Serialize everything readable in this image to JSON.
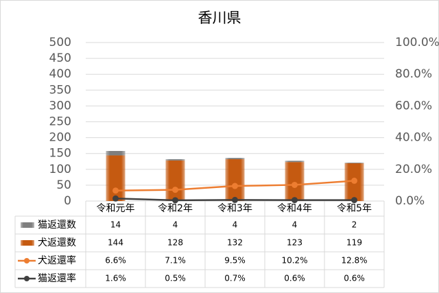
{
  "chart_data": {
    "type": "bar",
    "title": "香川県",
    "categories": [
      "令和元年",
      "令和2年",
      "令和3年",
      "令和4年",
      "令和5年"
    ],
    "series": [
      {
        "name": "猫返還数",
        "type": "bar",
        "color": "#7f7f7f",
        "values": [
          14,
          4,
          4,
          4,
          2
        ]
      },
      {
        "name": "犬返還数",
        "type": "bar",
        "color": "#c55a11",
        "values": [
          144,
          128,
          132,
          123,
          119
        ]
      },
      {
        "name": "犬返還率",
        "type": "line",
        "axis": "y2",
        "color": "#ed7d31",
        "values": [
          6.6,
          7.1,
          9.5,
          10.2,
          12.8
        ],
        "value_labels": [
          "6.6%",
          "7.1%",
          "9.5%",
          "10.2%",
          "12.8%"
        ]
      },
      {
        "name": "猫返還率",
        "type": "line",
        "axis": "y2",
        "color": "#404040",
        "values": [
          1.6,
          0.5,
          0.7,
          0.6,
          0.6
        ],
        "value_labels": [
          "1.6%",
          "0.5%",
          "0.7%",
          "0.6%",
          "0.6%"
        ]
      }
    ],
    "stacked": true,
    "grid": true,
    "data_table": true,
    "ylim": [
      0,
      500
    ],
    "yticks": [
      0,
      50,
      100,
      150,
      200,
      250,
      300,
      350,
      400,
      450,
      500
    ],
    "y2lim": [
      0,
      100
    ],
    "y2ticks": [
      {
        "value": 0,
        "label": "0.0%"
      },
      {
        "value": 20,
        "label": "20.0%"
      },
      {
        "value": 40,
        "label": "40.0%"
      },
      {
        "value": 60,
        "label": "60.0%"
      },
      {
        "value": 80,
        "label": "80.0%"
      },
      {
        "value": 100,
        "label": "100.0%"
      }
    ]
  }
}
